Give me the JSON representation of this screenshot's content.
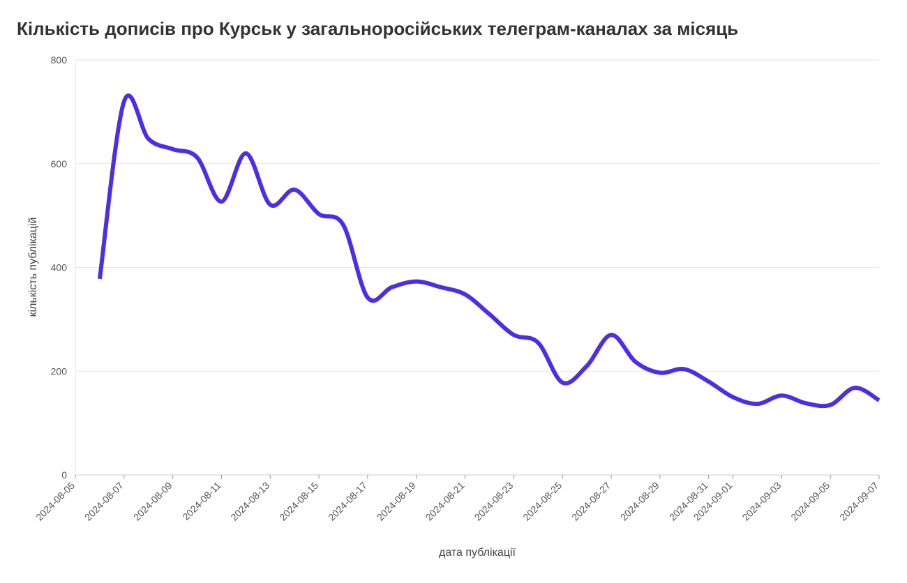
{
  "chart_data": {
    "type": "line",
    "title": "Кількість дописів про Курськ у загальноросійських телеграм-каналах за місяць",
    "xlabel": "дата публікації",
    "ylabel": "кількість публікацій",
    "xlim": [
      "2024-08-05",
      "2024-09-07"
    ],
    "ylim": [
      0,
      800
    ],
    "grid": true,
    "legend": "none",
    "line_color": "#4b2ee6",
    "y_ticks": [
      "0",
      "200",
      "400",
      "600",
      "800"
    ],
    "x_ticks": [
      "2024-08-05",
      "2024-08-07",
      "2024-08-09",
      "2024-08-11",
      "2024-08-13",
      "2024-08-15",
      "2024-08-17",
      "2024-08-19",
      "2024-08-21",
      "2024-08-23",
      "2024-08-25",
      "2024-08-27",
      "2024-08-29",
      "2024-08-31",
      "2024-09-01",
      "2024-09-03",
      "2024-09-05",
      "2024-09-07"
    ],
    "series": [
      {
        "x": [
          "2024-08-06",
          "2024-08-07",
          "2024-08-08",
          "2024-08-09",
          "2024-08-10",
          "2024-08-11",
          "2024-08-12",
          "2024-08-13",
          "2024-08-14",
          "2024-08-15",
          "2024-08-16",
          "2024-08-17",
          "2024-08-18",
          "2024-08-19",
          "2024-08-20",
          "2024-08-21",
          "2024-08-22",
          "2024-08-23",
          "2024-08-24",
          "2024-08-25",
          "2024-08-26",
          "2024-08-27",
          "2024-08-28",
          "2024-08-29",
          "2024-08-30",
          "2024-08-31",
          "2024-09-01",
          "2024-09-02",
          "2024-09-03",
          "2024-09-04",
          "2024-09-05",
          "2024-09-06",
          "2024-09-07"
        ],
        "values": [
          378,
          720,
          648,
          628,
          612,
          527,
          620,
          521,
          550,
          503,
          482,
          342,
          362,
          373,
          362,
          348,
          310,
          270,
          255,
          178,
          210,
          270,
          218,
          197,
          204,
          180,
          150,
          137,
          153,
          138,
          135,
          168,
          144
        ]
      }
    ]
  }
}
